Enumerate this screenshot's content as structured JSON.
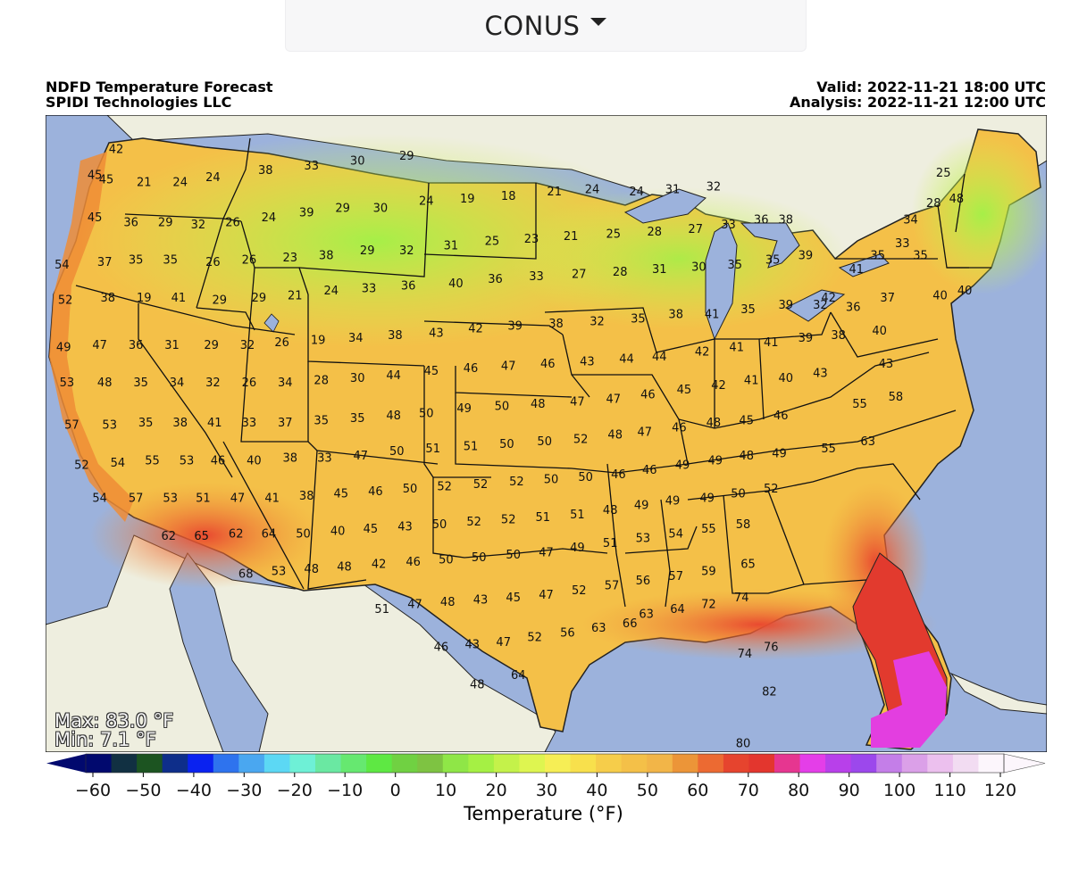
{
  "region_selector": {
    "label": "CONUS"
  },
  "header": {
    "title": "NDFD Temperature Forecast",
    "provider": "SPIDI Technologies LLC",
    "valid": "Valid: 2022-11-21 18:00 UTC",
    "analysis": "Analysis: 2022-11-21 12:00 UTC"
  },
  "stats": {
    "max": "Max: 83.0 °F",
    "min": "Min: 7.1 °F"
  },
  "colorbar": {
    "title": "Temperature (°F)",
    "ticks": [
      "−60",
      "−50",
      "−40",
      "−30",
      "−20",
      "−10",
      "0",
      "10",
      "20",
      "30",
      "40",
      "50",
      "60",
      "70",
      "80",
      "90",
      "100",
      "110",
      "120"
    ],
    "colors": [
      "#01096e",
      "#113042",
      "#1c5421",
      "#0e2e8a",
      "#0a22f0",
      "#2e73ee",
      "#4aa7f0",
      "#5cd8f4",
      "#6ef0d6",
      "#6ae8a2",
      "#66e870",
      "#5ee843",
      "#70d142",
      "#7ec342",
      "#8fe647",
      "#a5f044",
      "#c4f24a",
      "#def550",
      "#f6ee55",
      "#f8e04c",
      "#f6cd4a",
      "#f4c048",
      "#f2b548",
      "#ec9538",
      "#ec6a32",
      "#e6442e",
      "#e3362e",
      "#e63690",
      "#e43ee8",
      "#b840ea",
      "#9c48ec",
      "#c47ee8",
      "#dba0e8",
      "#ecc0ee",
      "#f2dcf2",
      "#fcf6fc"
    ],
    "series": [
      {
        "name": "Temperature (°F)"
      }
    ]
  },
  "temperature_labels": [
    {
      "v": "42",
      "lon": -122.7,
      "lat": 48.9
    },
    {
      "v": "45",
      "lon": -124.0,
      "lat": 47.8
    },
    {
      "v": "45",
      "lon": -123.3,
      "lat": 47.6
    },
    {
      "v": "21",
      "lon": -121.0,
      "lat": 47.5
    },
    {
      "v": "24",
      "lon": -118.8,
      "lat": 47.5
    },
    {
      "v": "24",
      "lon": -116.8,
      "lat": 47.7
    },
    {
      "v": "38",
      "lon": -113.6,
      "lat": 48.0
    },
    {
      "v": "33",
      "lon": -110.8,
      "lat": 48.2
    },
    {
      "v": "30",
      "lon": -108.0,
      "lat": 48.4
    },
    {
      "v": "29",
      "lon": -105.0,
      "lat": 48.6
    },
    {
      "v": "45",
      "lon": -124.0,
      "lat": 46.0
    },
    {
      "v": "36",
      "lon": -121.8,
      "lat": 45.8
    },
    {
      "v": "29",
      "lon": -119.7,
      "lat": 45.8
    },
    {
      "v": "32",
      "lon": -117.7,
      "lat": 45.7
    },
    {
      "v": "26",
      "lon": -115.6,
      "lat": 45.8
    },
    {
      "v": "24",
      "lon": -113.4,
      "lat": 46.0
    },
    {
      "v": "39",
      "lon": -111.1,
      "lat": 46.2
    },
    {
      "v": "29",
      "lon": -108.9,
      "lat": 46.4
    },
    {
      "v": "30",
      "lon": -106.6,
      "lat": 46.4
    },
    {
      "v": "24",
      "lon": -103.8,
      "lat": 46.7
    },
    {
      "v": "19",
      "lon": -101.3,
      "lat": 46.8
    },
    {
      "v": "18",
      "lon": -98.8,
      "lat": 46.9
    },
    {
      "v": "21",
      "lon": -96.0,
      "lat": 47.1
    },
    {
      "v": "24",
      "lon": -93.7,
      "lat": 47.2
    },
    {
      "v": "24",
      "lon": -91.0,
      "lat": 47.1
    },
    {
      "v": "31",
      "lon": -88.8,
      "lat": 47.2
    },
    {
      "v": "32",
      "lon": -86.3,
      "lat": 47.3
    },
    {
      "v": "54",
      "lon": -126.0,
      "lat": 44.0
    },
    {
      "v": "37",
      "lon": -123.4,
      "lat": 44.1
    },
    {
      "v": "35",
      "lon": -121.5,
      "lat": 44.2
    },
    {
      "v": "35",
      "lon": -119.4,
      "lat": 44.2
    },
    {
      "v": "26",
      "lon": -116.8,
      "lat": 44.1
    },
    {
      "v": "26",
      "lon": -114.6,
      "lat": 44.2
    },
    {
      "v": "23",
      "lon": -112.1,
      "lat": 44.3
    },
    {
      "v": "38",
      "lon": -109.9,
      "lat": 44.4
    },
    {
      "v": "29",
      "lon": -107.4,
      "lat": 44.6
    },
    {
      "v": "32",
      "lon": -105.0,
      "lat": 44.6
    },
    {
      "v": "31",
      "lon": -102.3,
      "lat": 44.8
    },
    {
      "v": "25",
      "lon": -99.8,
      "lat": 45.0
    },
    {
      "v": "23",
      "lon": -97.4,
      "lat": 45.1
    },
    {
      "v": "21",
      "lon": -95.0,
      "lat": 45.2
    },
    {
      "v": "25",
      "lon": -92.4,
      "lat": 45.3
    },
    {
      "v": "28",
      "lon": -89.9,
      "lat": 45.4
    },
    {
      "v": "27",
      "lon": -87.4,
      "lat": 45.5
    },
    {
      "v": "33",
      "lon": -85.4,
      "lat": 45.7
    },
    {
      "v": "36",
      "lon": -83.4,
      "lat": 45.9
    },
    {
      "v": "38",
      "lon": -81.9,
      "lat": 45.9
    },
    {
      "v": "52",
      "lon": -125.8,
      "lat": 42.5
    },
    {
      "v": "38",
      "lon": -123.2,
      "lat": 42.6
    },
    {
      "v": "19",
      "lon": -121.0,
      "lat": 42.6
    },
    {
      "v": "41",
      "lon": -118.9,
      "lat": 42.6
    },
    {
      "v": "29",
      "lon": -116.4,
      "lat": 42.5
    },
    {
      "v": "29",
      "lon": -114.0,
      "lat": 42.6
    },
    {
      "v": "21",
      "lon": -111.8,
      "lat": 42.7
    },
    {
      "v": "24",
      "lon": -109.6,
      "lat": 42.9
    },
    {
      "v": "33",
      "lon": -107.3,
      "lat": 43.0
    },
    {
      "v": "36",
      "lon": -104.9,
      "lat": 43.1
    },
    {
      "v": "40",
      "lon": -102.0,
      "lat": 43.2
    },
    {
      "v": "36",
      "lon": -99.6,
      "lat": 43.4
    },
    {
      "v": "33",
      "lon": -97.1,
      "lat": 43.5
    },
    {
      "v": "27",
      "lon": -94.5,
      "lat": 43.6
    },
    {
      "v": "28",
      "lon": -92.0,
      "lat": 43.7
    },
    {
      "v": "31",
      "lon": -89.6,
      "lat": 43.8
    },
    {
      "v": "30",
      "lon": -87.2,
      "lat": 43.9
    },
    {
      "v": "35",
      "lon": -85.0,
      "lat": 44.0
    },
    {
      "v": "35",
      "lon": -82.7,
      "lat": 44.2
    },
    {
      "v": "39",
      "lon": -80.7,
      "lat": 44.4
    },
    {
      "v": "49",
      "lon": -125.9,
      "lat": 40.5
    },
    {
      "v": "47",
      "lon": -123.7,
      "lat": 40.6
    },
    {
      "v": "36",
      "lon": -121.5,
      "lat": 40.6
    },
    {
      "v": "31",
      "lon": -119.3,
      "lat": 40.6
    },
    {
      "v": "29",
      "lon": -116.9,
      "lat": 40.6
    },
    {
      "v": "32",
      "lon": -114.7,
      "lat": 40.6
    },
    {
      "v": "26",
      "lon": -112.6,
      "lat": 40.7
    },
    {
      "v": "19",
      "lon": -110.4,
      "lat": 40.8
    },
    {
      "v": "34",
      "lon": -108.1,
      "lat": 40.9
    },
    {
      "v": "38",
      "lon": -105.7,
      "lat": 41.0
    },
    {
      "v": "43",
      "lon": -103.2,
      "lat": 41.1
    },
    {
      "v": "42",
      "lon": -100.8,
      "lat": 41.3
    },
    {
      "v": "39",
      "lon": -98.4,
      "lat": 41.4
    },
    {
      "v": "38",
      "lon": -95.9,
      "lat": 41.5
    },
    {
      "v": "32",
      "lon": -93.4,
      "lat": 41.6
    },
    {
      "v": "35",
      "lon": -90.9,
      "lat": 41.7
    },
    {
      "v": "38",
      "lon": -88.6,
      "lat": 41.9
    },
    {
      "v": "41",
      "lon": -86.4,
      "lat": 41.9
    },
    {
      "v": "35",
      "lon": -84.2,
      "lat": 42.1
    },
    {
      "v": "39",
      "lon": -81.9,
      "lat": 42.3
    },
    {
      "v": "53",
      "lon": -125.7,
      "lat": 39.0
    },
    {
      "v": "48",
      "lon": -123.4,
      "lat": 39.0
    },
    {
      "v": "35",
      "lon": -121.2,
      "lat": 39.0
    },
    {
      "v": "34",
      "lon": -119.0,
      "lat": 39.0
    },
    {
      "v": "32",
      "lon": -116.8,
      "lat": 39.0
    },
    {
      "v": "26",
      "lon": -114.6,
      "lat": 39.0
    },
    {
      "v": "34",
      "lon": -112.4,
      "lat": 39.0
    },
    {
      "v": "28",
      "lon": -110.2,
      "lat": 39.1
    },
    {
      "v": "30",
      "lon": -108.0,
      "lat": 39.2
    },
    {
      "v": "44",
      "lon": -105.8,
      "lat": 39.3
    },
    {
      "v": "45",
      "lon": -103.5,
      "lat": 39.5
    },
    {
      "v": "46",
      "lon": -101.1,
      "lat": 39.6
    },
    {
      "v": "47",
      "lon": -98.8,
      "lat": 39.7
    },
    {
      "v": "46",
      "lon": -96.4,
      "lat": 39.8
    },
    {
      "v": "43",
      "lon": -94.0,
      "lat": 39.9
    },
    {
      "v": "44",
      "lon": -91.6,
      "lat": 40.0
    },
    {
      "v": "44",
      "lon": -89.6,
      "lat": 40.1
    },
    {
      "v": "42",
      "lon": -87.0,
      "lat": 40.3
    },
    {
      "v": "41",
      "lon": -84.9,
      "lat": 40.5
    },
    {
      "v": "41",
      "lon": -82.8,
      "lat": 40.7
    },
    {
      "v": "39",
      "lon": -80.7,
      "lat": 40.9
    },
    {
      "v": "38",
      "lon": -78.7,
      "lat": 41.0
    },
    {
      "v": "40",
      "lon": -76.2,
      "lat": 41.2
    },
    {
      "v": "57",
      "lon": -125.4,
      "lat": 37.2
    },
    {
      "v": "53",
      "lon": -123.1,
      "lat": 37.2
    },
    {
      "v": "35",
      "lon": -120.9,
      "lat": 37.3
    },
    {
      "v": "38",
      "lon": -118.8,
      "lat": 37.3
    },
    {
      "v": "41",
      "lon": -116.7,
      "lat": 37.3
    },
    {
      "v": "33",
      "lon": -114.6,
      "lat": 37.3
    },
    {
      "v": "37",
      "lon": -112.4,
      "lat": 37.3
    },
    {
      "v": "35",
      "lon": -110.2,
      "lat": 37.4
    },
    {
      "v": "35",
      "lon": -108.0,
      "lat": 37.5
    },
    {
      "v": "48",
      "lon": -105.8,
      "lat": 37.6
    },
    {
      "v": "50",
      "lon": -103.8,
      "lat": 37.7
    },
    {
      "v": "49",
      "lon": -101.5,
      "lat": 37.9
    },
    {
      "v": "50",
      "lon": -99.2,
      "lat": 38.0
    },
    {
      "v": "48",
      "lon": -97.0,
      "lat": 38.1
    },
    {
      "v": "47",
      "lon": -94.6,
      "lat": 38.2
    },
    {
      "v": "47",
      "lon": -92.4,
      "lat": 38.3
    },
    {
      "v": "46",
      "lon": -90.3,
      "lat": 38.5
    },
    {
      "v": "45",
      "lon": -88.1,
      "lat": 38.7
    },
    {
      "v": "42",
      "lon": -86.0,
      "lat": 38.9
    },
    {
      "v": "41",
      "lon": -84.0,
      "lat": 39.1
    },
    {
      "v": "40",
      "lon": -81.9,
      "lat": 39.2
    },
    {
      "v": "43",
      "lon": -79.8,
      "lat": 39.4
    },
    {
      "v": "43",
      "lon": -75.8,
      "lat": 39.8
    },
    {
      "v": "52",
      "lon": -124.8,
      "lat": 35.5
    },
    {
      "v": "54",
      "lon": -122.6,
      "lat": 35.6
    },
    {
      "v": "55",
      "lon": -120.5,
      "lat": 35.7
    },
    {
      "v": "53",
      "lon": -118.4,
      "lat": 35.7
    },
    {
      "v": "46",
      "lon": -116.5,
      "lat": 35.7
    },
    {
      "v": "40",
      "lon": -114.3,
      "lat": 35.7
    },
    {
      "v": "38",
      "lon": -112.1,
      "lat": 35.8
    },
    {
      "v": "33",
      "lon": -110.0,
      "lat": 35.8
    },
    {
      "v": "47",
      "lon": -107.8,
      "lat": 35.9
    },
    {
      "v": "50",
      "lon": -105.6,
      "lat": 36.1
    },
    {
      "v": "51",
      "lon": -103.4,
      "lat": 36.2
    },
    {
      "v": "51",
      "lon": -101.1,
      "lat": 36.3
    },
    {
      "v": "50",
      "lon": -98.9,
      "lat": 36.4
    },
    {
      "v": "50",
      "lon": -96.6,
      "lat": 36.5
    },
    {
      "v": "52",
      "lon": -94.4,
      "lat": 36.6
    },
    {
      "v": "48",
      "lon": -92.3,
      "lat": 36.8
    },
    {
      "v": "47",
      "lon": -90.5,
      "lat": 36.9
    },
    {
      "v": "46",
      "lon": -88.4,
      "lat": 37.1
    },
    {
      "v": "48",
      "lon": -86.3,
      "lat": 37.3
    },
    {
      "v": "45",
      "lon": -84.3,
      "lat": 37.4
    },
    {
      "v": "46",
      "lon": -82.2,
      "lat": 37.6
    },
    {
      "v": "55",
      "lon": -77.4,
      "lat": 38.1
    },
    {
      "v": "58",
      "lon": -75.2,
      "lat": 38.4
    },
    {
      "v": "54",
      "lon": -123.7,
      "lat": 34.1
    },
    {
      "v": "57",
      "lon": -121.5,
      "lat": 34.1
    },
    {
      "v": "53",
      "lon": -119.4,
      "lat": 34.1
    },
    {
      "v": "51",
      "lon": -117.4,
      "lat": 34.1
    },
    {
      "v": "47",
      "lon": -115.3,
      "lat": 34.1
    },
    {
      "v": "41",
      "lon": -113.2,
      "lat": 34.1
    },
    {
      "v": "38",
      "lon": -111.1,
      "lat": 34.2
    },
    {
      "v": "45",
      "lon": -109.0,
      "lat": 34.3
    },
    {
      "v": "46",
      "lon": -106.9,
      "lat": 34.4
    },
    {
      "v": "50",
      "lon": -104.8,
      "lat": 34.5
    },
    {
      "v": "52",
      "lon": -102.7,
      "lat": 34.6
    },
    {
      "v": "52",
      "lon": -100.5,
      "lat": 34.7
    },
    {
      "v": "52",
      "lon": -98.3,
      "lat": 34.8
    },
    {
      "v": "50",
      "lon": -96.2,
      "lat": 34.9
    },
    {
      "v": "50",
      "lon": -94.1,
      "lat": 35.0
    },
    {
      "v": "46",
      "lon": -92.1,
      "lat": 35.1
    },
    {
      "v": "46",
      "lon": -90.2,
      "lat": 35.3
    },
    {
      "v": "49",
      "lon": -88.2,
      "lat": 35.5
    },
    {
      "v": "49",
      "lon": -86.2,
      "lat": 35.7
    },
    {
      "v": "48",
      "lon": -84.3,
      "lat": 35.9
    },
    {
      "v": "49",
      "lon": -82.3,
      "lat": 36.0
    },
    {
      "v": "55",
      "lon": -79.3,
      "lat": 36.2
    },
    {
      "v": "63",
      "lon": -76.9,
      "lat": 36.5
    },
    {
      "v": "62",
      "lon": -119.5,
      "lat": 32.5
    },
    {
      "v": "65",
      "lon": -117.5,
      "lat": 32.5
    },
    {
      "v": "62",
      "lon": -115.4,
      "lat": 32.6
    },
    {
      "v": "64",
      "lon": -113.4,
      "lat": 32.6
    },
    {
      "v": "50",
      "lon": -111.3,
      "lat": 32.6
    },
    {
      "v": "40",
      "lon": -109.2,
      "lat": 32.7
    },
    {
      "v": "45",
      "lon": -107.2,
      "lat": 32.8
    },
    {
      "v": "43",
      "lon": -105.1,
      "lat": 32.9
    },
    {
      "v": "50",
      "lon": -103.0,
      "lat": 33.0
    },
    {
      "v": "52",
      "lon": -100.9,
      "lat": 33.1
    },
    {
      "v": "52",
      "lon": -98.8,
      "lat": 33.2
    },
    {
      "v": "51",
      "lon": -96.7,
      "lat": 33.3
    },
    {
      "v": "51",
      "lon": -94.6,
      "lat": 33.4
    },
    {
      "v": "48",
      "lon": -92.6,
      "lat": 33.6
    },
    {
      "v": "49",
      "lon": -90.7,
      "lat": 33.8
    },
    {
      "v": "49",
      "lon": -88.8,
      "lat": 34.0
    },
    {
      "v": "49",
      "lon": -86.7,
      "lat": 34.1
    },
    {
      "v": "50",
      "lon": -84.8,
      "lat": 34.3
    },
    {
      "v": "52",
      "lon": -82.8,
      "lat": 34.5
    },
    {
      "v": "68",
      "lon": -114.8,
      "lat": 30.9
    },
    {
      "v": "53",
      "lon": -112.8,
      "lat": 31.0
    },
    {
      "v": "48",
      "lon": -110.8,
      "lat": 31.1
    },
    {
      "v": "48",
      "lon": -108.8,
      "lat": 31.2
    },
    {
      "v": "42",
      "lon": -106.7,
      "lat": 31.3
    },
    {
      "v": "46",
      "lon": -104.6,
      "lat": 31.4
    },
    {
      "v": "50",
      "lon": -102.6,
      "lat": 31.5
    },
    {
      "v": "50",
      "lon": -100.6,
      "lat": 31.6
    },
    {
      "v": "50",
      "lon": -98.5,
      "lat": 31.7
    },
    {
      "v": "47",
      "lon": -96.5,
      "lat": 31.8
    },
    {
      "v": "49",
      "lon": -94.6,
      "lat": 32.0
    },
    {
      "v": "51",
      "lon": -92.6,
      "lat": 32.2
    },
    {
      "v": "53",
      "lon": -90.6,
      "lat": 32.4
    },
    {
      "v": "54",
      "lon": -88.6,
      "lat": 32.6
    },
    {
      "v": "55",
      "lon": -86.6,
      "lat": 32.8
    },
    {
      "v": "58",
      "lon": -84.5,
      "lat": 33.0
    },
    {
      "v": "51",
      "lon": -106.5,
      "lat": 29.4
    },
    {
      "v": "47",
      "lon": -104.5,
      "lat": 29.6
    },
    {
      "v": "48",
      "lon": -102.5,
      "lat": 29.7
    },
    {
      "v": "43",
      "lon": -100.5,
      "lat": 29.8
    },
    {
      "v": "45",
      "lon": -98.5,
      "lat": 29.9
    },
    {
      "v": "47",
      "lon": -96.5,
      "lat": 30.0
    },
    {
      "v": "52",
      "lon": -94.5,
      "lat": 30.2
    },
    {
      "v": "57",
      "lon": -92.5,
      "lat": 30.4
    },
    {
      "v": "56",
      "lon": -90.6,
      "lat": 30.6
    },
    {
      "v": "57",
      "lon": -88.6,
      "lat": 30.8
    },
    {
      "v": "59",
      "lon": -86.6,
      "lat": 31.0
    },
    {
      "v": "65",
      "lon": -84.2,
      "lat": 31.3
    },
    {
      "v": "63",
      "lon": -90.4,
      "lat": 29.2
    },
    {
      "v": "64",
      "lon": -88.5,
      "lat": 29.4
    },
    {
      "v": "72",
      "lon": -86.6,
      "lat": 29.6
    },
    {
      "v": "74",
      "lon": -84.6,
      "lat": 29.9
    },
    {
      "v": "46",
      "lon": -102.9,
      "lat": 27.8
    },
    {
      "v": "43",
      "lon": -101.0,
      "lat": 27.9
    },
    {
      "v": "47",
      "lon": -99.1,
      "lat": 28.0
    },
    {
      "v": "52",
      "lon": -97.2,
      "lat": 28.2
    },
    {
      "v": "56",
      "lon": -95.2,
      "lat": 28.4
    },
    {
      "v": "63",
      "lon": -93.3,
      "lat": 28.6
    },
    {
      "v": "66",
      "lon": -91.4,
      "lat": 28.8
    },
    {
      "v": "74",
      "lon": -84.4,
      "lat": 27.5
    },
    {
      "v": "76",
      "lon": -82.8,
      "lat": 27.8
    },
    {
      "v": "48",
      "lon": -100.7,
      "lat": 26.2
    },
    {
      "v": "64",
      "lon": -98.2,
      "lat": 26.6
    },
    {
      "v": "82",
      "lon": -82.9,
      "lat": 25.9
    },
    {
      "v": "80",
      "lon": -84.5,
      "lat": 23.7
    },
    {
      "v": "25",
      "lon": -72.3,
      "lat": 47.9
    },
    {
      "v": "28",
      "lon": -72.9,
      "lat": 46.6
    },
    {
      "v": "48",
      "lon": -71.5,
      "lat": 46.8
    },
    {
      "v": "34",
      "lon": -74.3,
      "lat": 45.9
    },
    {
      "v": "33",
      "lon": -74.8,
      "lat": 44.9
    },
    {
      "v": "35",
      "lon": -76.3,
      "lat": 44.4
    },
    {
      "v": "41",
      "lon": -77.6,
      "lat": 43.8
    },
    {
      "v": "35",
      "lon": -73.7,
      "lat": 44.4
    },
    {
      "v": "40",
      "lon": -71.0,
      "lat": 42.9
    },
    {
      "v": "37",
      "lon": -75.7,
      "lat": 42.6
    },
    {
      "v": "36",
      "lon": -77.8,
      "lat": 42.2
    },
    {
      "v": "32",
      "lon": -79.8,
      "lat": 42.3
    },
    {
      "v": "40",
      "lon": -72.5,
      "lat": 42.7
    },
    {
      "v": "42",
      "lon": -79.3,
      "lat": 42.6
    }
  ]
}
